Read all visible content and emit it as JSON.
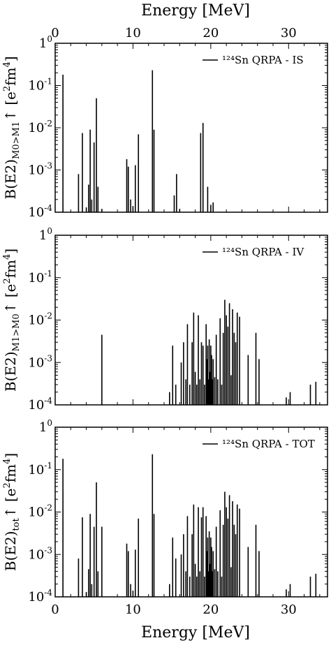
{
  "figure": {
    "top_axis_label": "Energy [MeV]",
    "bottom_axis_label": "Energy [MeV]",
    "x_tick_labels": [
      "0",
      "10",
      "20",
      "30"
    ]
  },
  "chart_data": [
    {
      "type": "bar",
      "panel": "IS",
      "legend": "¹²⁴Sn QRPA - IS",
      "ylabel": {
        "main": "B(E2)",
        "sub": "M0>M1",
        "tail": "↑ [e",
        "sup1": "2",
        "mid": "fm",
        "sup2": "4",
        "end": "]"
      },
      "xlim": [
        0,
        35
      ],
      "ylim": [
        0.0001,
        1
      ],
      "yscale": "log",
      "y_tick_labels": [
        "10",
        "10",
        "10",
        "10",
        "1"
      ],
      "y_tick_exponents": [
        "-4",
        "-3",
        "-2",
        "-1",
        "0"
      ],
      "x": [
        1.0,
        3.0,
        3.5,
        4.0,
        4.3,
        4.5,
        4.7,
        5.0,
        5.3,
        5.5,
        6.0,
        9.2,
        9.4,
        9.7,
        10.0,
        10.3,
        10.7,
        12.5,
        12.7,
        15.3,
        15.6,
        16.0,
        18.7,
        19.0,
        19.6,
        20.0,
        20.3
      ],
      "y": [
        0.18,
        0.0008,
        0.0075,
        0.00013,
        0.00045,
        0.009,
        0.0002,
        0.0045,
        0.05,
        0.0004,
        0.00012,
        0.0018,
        0.0012,
        0.0002,
        0.00014,
        0.0013,
        0.007,
        0.23,
        0.009,
        0.00025,
        0.0008,
        0.00012,
        0.0075,
        0.013,
        0.0004,
        0.00015,
        0.00017
      ]
    },
    {
      "type": "bar",
      "panel": "IV",
      "legend": "¹²⁴Sn QRPA - IV",
      "ylabel": {
        "main": "B(E2)",
        "sub": "M1>M0",
        "tail": "↑ [e",
        "sup1": "2",
        "mid": "fm",
        "sup2": "4",
        "end": "]"
      },
      "xlim": [
        0,
        35
      ],
      "ylim": [
        0.0001,
        1
      ],
      "yscale": "log",
      "y_tick_labels": [
        "10",
        "10",
        "10",
        "10",
        "1"
      ],
      "y_tick_exponents": [
        "-4",
        "-3",
        "-2",
        "-1",
        "0"
      ],
      "x": [
        6.0,
        14.7,
        15.1,
        15.5,
        16.2,
        16.5,
        16.8,
        17.0,
        17.3,
        17.6,
        17.8,
        18.0,
        18.2,
        18.4,
        18.6,
        18.8,
        19.0,
        19.2,
        19.4,
        19.5,
        19.6,
        19.7,
        19.8,
        19.9,
        20.0,
        20.1,
        20.2,
        20.3,
        20.5,
        20.7,
        20.9,
        21.2,
        21.4,
        21.6,
        21.8,
        22.0,
        22.2,
        22.4,
        22.6,
        22.8,
        23.0,
        23.2,
        23.4,
        23.7,
        24.8,
        25.8,
        26.2,
        29.7,
        30.2,
        32.8,
        33.5
      ],
      "y": [
        0.0045,
        0.0002,
        0.0025,
        0.0003,
        0.001,
        0.003,
        0.0004,
        0.008,
        0.0003,
        0.003,
        0.015,
        0.0006,
        0.0003,
        0.013,
        0.0004,
        0.003,
        0.0025,
        0.0003,
        0.008,
        0.0012,
        0.0025,
        0.0004,
        0.0035,
        0.0006,
        0.0025,
        0.0015,
        0.0004,
        0.0012,
        0.00045,
        0.0045,
        0.0004,
        0.011,
        0.0003,
        0.005,
        0.03,
        0.013,
        0.007,
        0.025,
        0.0005,
        0.018,
        0.005,
        0.003,
        0.015,
        0.012,
        0.0015,
        0.005,
        0.0012,
        0.00015,
        0.0002,
        0.0003,
        0.00035
      ]
    },
    {
      "type": "bar",
      "panel": "TOT",
      "legend": "¹²⁴Sn QRPA - TOT",
      "ylabel": {
        "main": "B(E2)",
        "sub": "tot",
        "tail": "↑ [e",
        "sup1": "2",
        "mid": "fm",
        "sup2": "4",
        "end": "]"
      },
      "xlim": [
        0,
        35
      ],
      "ylim": [
        0.0001,
        1
      ],
      "yscale": "log",
      "y_tick_labels": [
        "10",
        "10",
        "10",
        "10",
        "1"
      ],
      "y_tick_exponents": [
        "-4",
        "-3",
        "-2",
        "-1",
        "0"
      ],
      "x": [
        1.0,
        3.0,
        3.5,
        4.0,
        4.3,
        4.5,
        4.7,
        5.0,
        5.3,
        5.5,
        6.0,
        9.2,
        9.4,
        9.7,
        10.0,
        10.3,
        10.7,
        12.5,
        12.7,
        14.7,
        15.1,
        15.5,
        16.2,
        16.5,
        16.8,
        17.0,
        17.3,
        17.6,
        17.8,
        18.0,
        18.2,
        18.4,
        18.6,
        18.8,
        19.0,
        19.2,
        19.4,
        19.5,
        19.6,
        19.7,
        19.8,
        19.9,
        20.0,
        20.1,
        20.2,
        20.3,
        20.5,
        20.7,
        20.9,
        21.2,
        21.4,
        21.6,
        21.8,
        22.0,
        22.2,
        22.4,
        22.6,
        22.8,
        23.0,
        23.2,
        23.4,
        23.7,
        24.8,
        25.8,
        26.2,
        29.7,
        30.2,
        32.8,
        33.5
      ],
      "y": [
        0.18,
        0.0008,
        0.0075,
        0.00013,
        0.00045,
        0.009,
        0.0002,
        0.0045,
        0.05,
        0.0004,
        0.0045,
        0.0018,
        0.0012,
        0.0002,
        0.00014,
        0.0013,
        0.007,
        0.23,
        0.009,
        0.0002,
        0.0025,
        0.0008,
        0.001,
        0.003,
        0.0004,
        0.008,
        0.0003,
        0.003,
        0.015,
        0.0006,
        0.0003,
        0.013,
        0.0004,
        0.0075,
        0.013,
        0.0003,
        0.008,
        0.0012,
        0.0025,
        0.0004,
        0.0035,
        0.0006,
        0.0025,
        0.0015,
        0.0004,
        0.0012,
        0.00045,
        0.0045,
        0.0004,
        0.011,
        0.0003,
        0.005,
        0.03,
        0.013,
        0.007,
        0.025,
        0.0005,
        0.018,
        0.005,
        0.003,
        0.015,
        0.012,
        0.0015,
        0.005,
        0.0012,
        0.00015,
        0.0002,
        0.0003,
        0.00035
      ]
    }
  ]
}
